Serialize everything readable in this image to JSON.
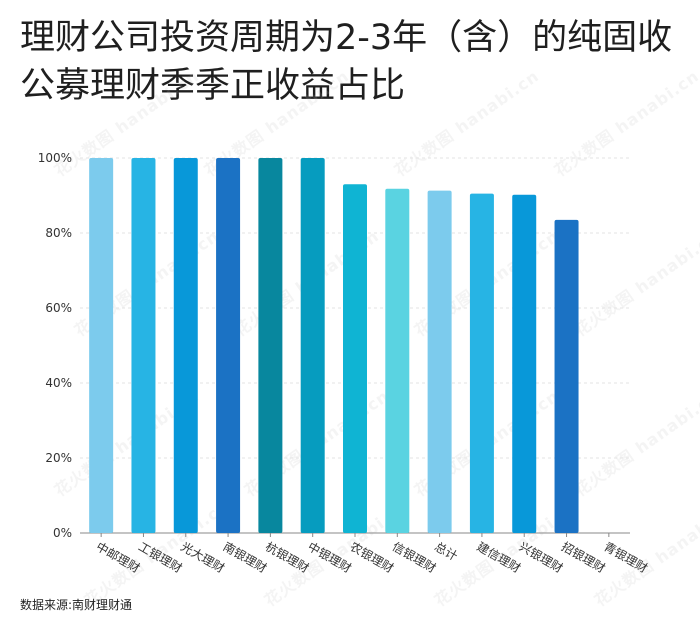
{
  "title": "理财公司投资周期为2-3年（含）的纯固收公募理财季季正收益占比",
  "source": "数据来源:南财理财通",
  "watermark": "花火数图 hanabi.cn",
  "chart_data": {
    "type": "bar",
    "title": "理财公司投资周期为2-3年（含）的纯固收公募理财季季正收益占比",
    "categories": [
      "中邮理财",
      "工银理财",
      "光大理财",
      "南银理财",
      "杭银理财",
      "中银理财",
      "农银理财",
      "信银理财",
      "总计",
      "建信理财",
      "兴银理财",
      "招银理财",
      "青银理财"
    ],
    "values": [
      100,
      100,
      100,
      100,
      100,
      100,
      93,
      91.8,
      91.3,
      90.5,
      90.2,
      83.5,
      0
    ],
    "colors": [
      "#7ccbed",
      "#27b4e4",
      "#0898d9",
      "#1b72c4",
      "#08879e",
      "#069cbf",
      "#0fb4d3",
      "#5ad3e1",
      "#7ccbed",
      "#27b4e4",
      "#0898d9",
      "#1b72c4",
      "#08879e"
    ],
    "ylim": [
      0,
      100
    ],
    "yticks": [
      "0%",
      "20%",
      "40%",
      "60%",
      "80%",
      "100%"
    ],
    "xlabel": "",
    "ylabel": "",
    "grid": true
  }
}
